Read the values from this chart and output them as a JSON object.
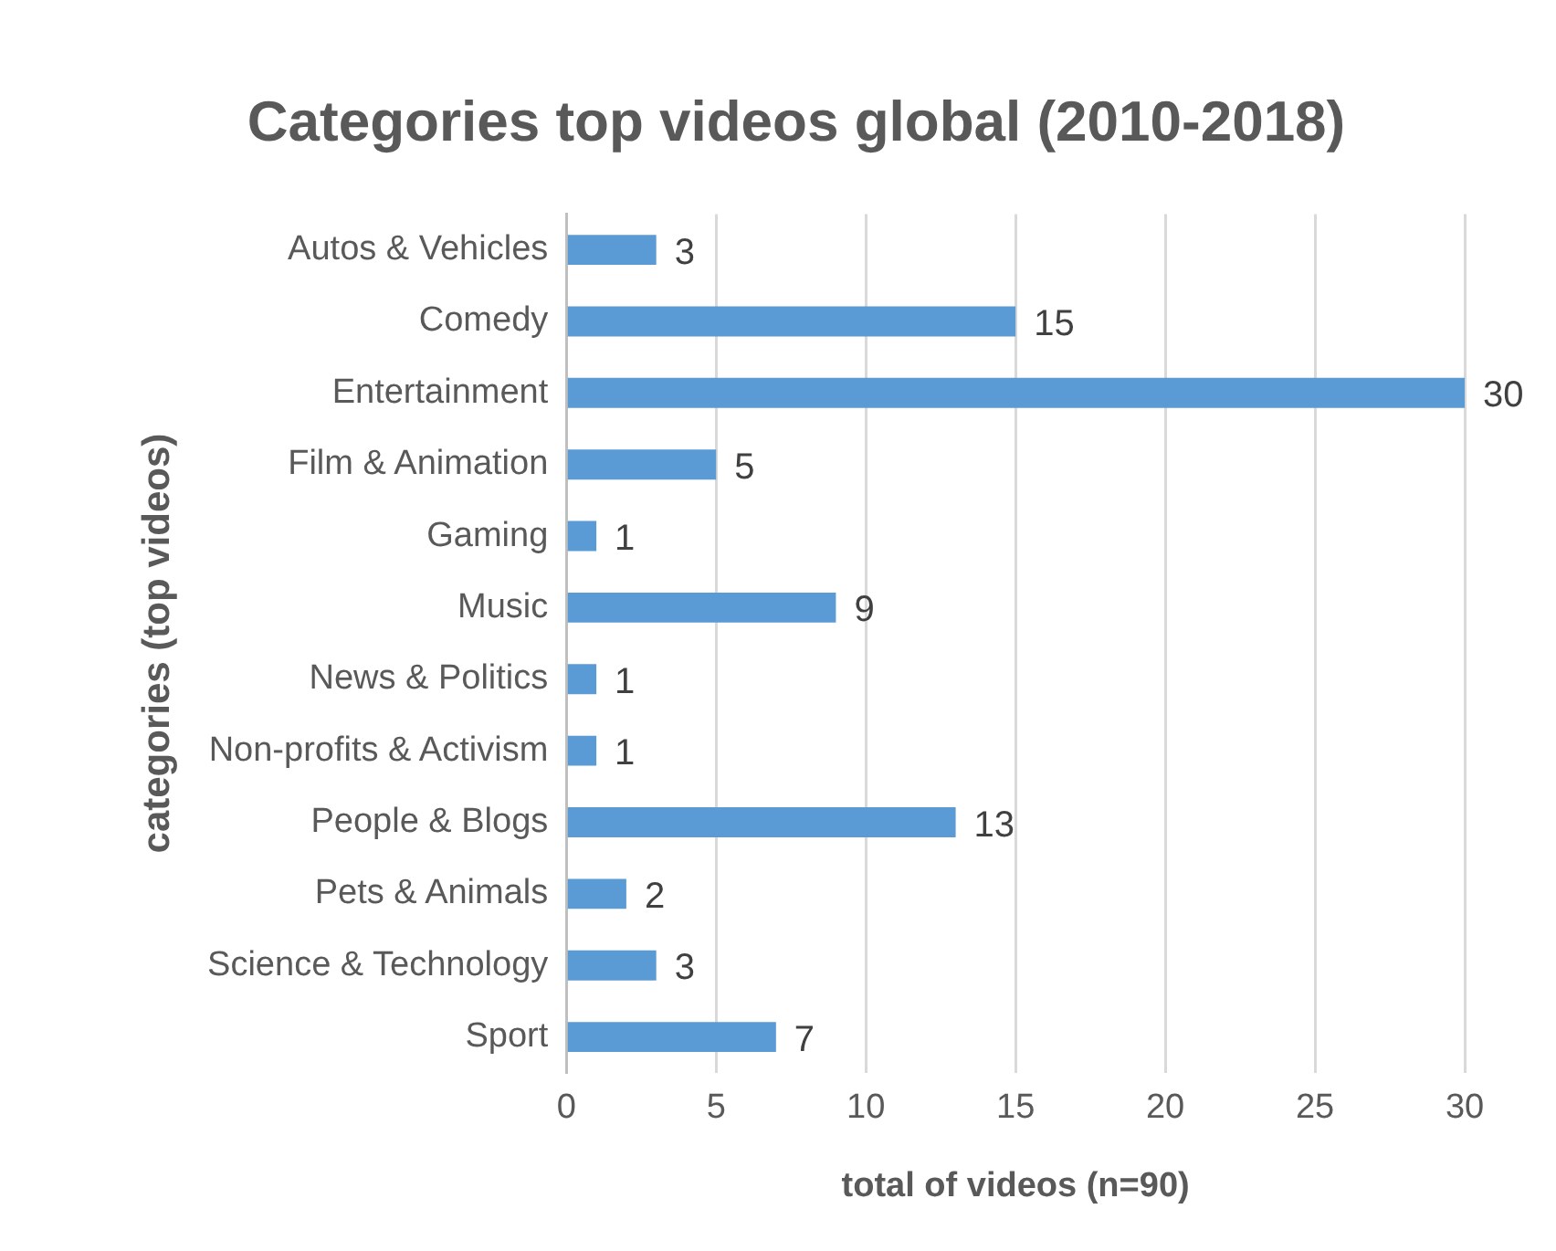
{
  "chart_data": {
    "type": "bar",
    "orientation": "horizontal",
    "title": "Categories top videos global (2010-2018)",
    "xlabel": "total of videos (n=90)",
    "ylabel": "categories (top videos)",
    "categories": [
      "Autos & Vehicles",
      "Comedy",
      "Entertainment",
      "Film & Animation",
      "Gaming",
      "Music",
      "News & Politics",
      "Non-profits & Activism",
      "People & Blogs",
      "Pets & Animals",
      "Science & Technology",
      "Sport"
    ],
    "values": [
      3,
      15,
      30,
      5,
      1,
      9,
      1,
      1,
      13,
      2,
      3,
      7
    ],
    "color": "#5b9bd5",
    "xlim": [
      0,
      30
    ],
    "xticks": [
      0,
      5,
      10,
      15,
      20,
      25,
      30
    ],
    "grid": "x",
    "data_labels": true,
    "legend": false
  }
}
